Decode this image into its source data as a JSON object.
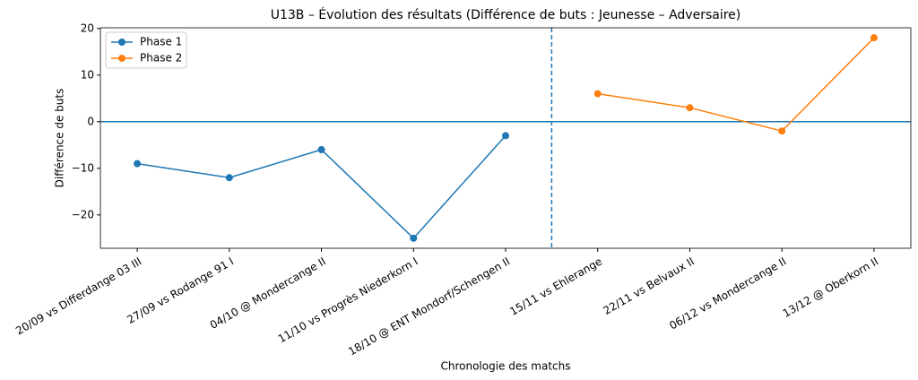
{
  "chart_data": {
    "type": "line",
    "title": "U13B – Évolution des résultats (Différence de buts : Jeunesse – Adversaire)",
    "x_label": "Chronologie des matchs",
    "y_label": "Différence de buts",
    "categories": [
      "20/09 vs Differdange 03 III",
      "27/09 vs Rodange 91 I",
      "04/10 @ Mondercange II",
      "11/10 vs Progrès Niederkorn I",
      "18/10 @ ENT Mondorf/Schengen II",
      "15/11 vs Ehlerange",
      "22/11 vs Belvaux II",
      "06/12 vs Mondercange II",
      "13/12 @ Oberkorn II"
    ],
    "series": [
      {
        "name": "Phase 1",
        "color": "#1f77b4",
        "values": [
          -9,
          -12,
          -6,
          -25,
          -3,
          null,
          null,
          null,
          null
        ]
      },
      {
        "name": "Phase 2",
        "color": "#ff7f0e",
        "values": [
          null,
          null,
          null,
          null,
          null,
          6,
          3,
          -2,
          18
        ]
      }
    ],
    "ylim": [
      -27.15,
      20.15
    ],
    "yticks": [
      {
        "value": -20,
        "label": "−20"
      },
      {
        "value": -10,
        "label": "−10"
      },
      0,
      10,
      20
    ],
    "reference_lines": {
      "y": 0,
      "x": 4.5,
      "color": "#1f77b4"
    },
    "legend": "upper left",
    "grid": false
  }
}
